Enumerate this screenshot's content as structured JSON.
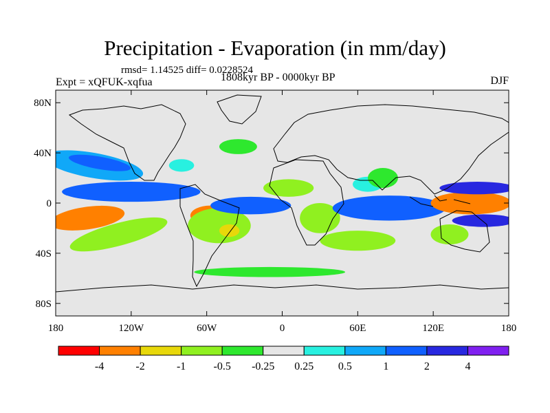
{
  "header": {
    "title": "Precipitation - Evaporation (in mm/day)",
    "stats": "rmsd= 1.14525 diff= 0.0228524",
    "experiment": "Expt = xQFUK-xqfua",
    "period": "1808kyr BP - 0000kyr BP",
    "season": "DJF"
  },
  "chart_data": {
    "type": "heatmap",
    "title": "Precipitation - Evaporation (in mm/day)",
    "xlabel": "",
    "ylabel": "",
    "xlim": [
      -180,
      180
    ],
    "ylim": [
      -90,
      90
    ],
    "x_ticks": [
      {
        "value": -180,
        "label": "180"
      },
      {
        "value": -120,
        "label": "120W"
      },
      {
        "value": -60,
        "label": "60W"
      },
      {
        "value": 0,
        "label": "0"
      },
      {
        "value": 60,
        "label": "60E"
      },
      {
        "value": 120,
        "label": "120E"
      },
      {
        "value": 180,
        "label": "180"
      }
    ],
    "y_ticks": [
      {
        "value": 80,
        "label": "80N"
      },
      {
        "value": 40,
        "label": "40N"
      },
      {
        "value": 0,
        "label": "0"
      },
      {
        "value": -40,
        "label": "40S"
      },
      {
        "value": -80,
        "label": "80S"
      }
    ],
    "background_color": "#e6e6e6",
    "colorbar": {
      "labels": [
        "-4",
        "-2",
        "-1",
        "-0.5",
        "-0.25",
        "0.25",
        "0.5",
        "1",
        "2",
        "4"
      ],
      "colors": [
        "#ff0000",
        "#ff8000",
        "#e8d80a",
        "#90f020",
        "#2ee82e",
        "#e6e6e6",
        "#28f0e0",
        "#10a8f8",
        "#1060ff",
        "#2828e0",
        "#8020f0"
      ]
    },
    "regions": [
      {
        "name": "central-pacific-south-negative",
        "lon": -160,
        "lat": -13,
        "rlon": 22,
        "rlat": 6,
        "value": -5,
        "rot": -6
      },
      {
        "name": "central-pacific-south-orange",
        "lon": -155,
        "lat": -12,
        "rlon": 30,
        "rlat": 9,
        "value": -3,
        "rot": -8
      },
      {
        "name": "north-pacific-storm-track",
        "lon": -150,
        "lat": 30,
        "rlon": 40,
        "rlat": 10,
        "value": 0.75,
        "rot": 10
      },
      {
        "name": "north-pacific-storm-track-core",
        "lon": -145,
        "lat": 32,
        "rlon": 25,
        "rlat": 5,
        "value": 1.5,
        "rot": 10
      },
      {
        "name": "east-pacific-itcz",
        "lon": -115,
        "lat": 8,
        "rlon": 45,
        "rlat": 5,
        "value": 3,
        "rot": 0
      },
      {
        "name": "east-pacific-itcz-outer",
        "lon": -120,
        "lat": 9,
        "rlon": 55,
        "rlat": 8,
        "value": 1.5,
        "rot": 0
      },
      {
        "name": "south-pacific-green",
        "lon": -130,
        "lat": -25,
        "rlon": 40,
        "rlat": 9,
        "value": -0.75,
        "rot": -15
      },
      {
        "name": "amazon-drying",
        "lon": -57,
        "lat": -10,
        "rlon": 16,
        "rlat": 8,
        "value": -3,
        "rot": 0
      },
      {
        "name": "amazon-drying-core",
        "lon": -58,
        "lat": -11,
        "rlon": 8,
        "rlat": 4,
        "value": -5,
        "rot": 0
      },
      {
        "name": "south-america-green",
        "lon": -50,
        "lat": -18,
        "rlon": 25,
        "rlat": 14,
        "value": -0.75,
        "rot": 0
      },
      {
        "name": "south-atlantic-orange",
        "lon": -42,
        "lat": -22,
        "rlon": 8,
        "rlat": 5,
        "value": -1.5,
        "rot": 0
      },
      {
        "name": "atlantic-itcz",
        "lon": -25,
        "lat": -2,
        "rlon": 25,
        "rlat": 4,
        "value": 5,
        "rot": 0
      },
      {
        "name": "atlantic-itcz-outer",
        "lon": -25,
        "lat": -2,
        "rlon": 32,
        "rlat": 7,
        "value": 1.5,
        "rot": 0
      },
      {
        "name": "sahel-orange",
        "lon": 5,
        "lat": 13,
        "rlon": 14,
        "rlat": 4,
        "value": -3,
        "rot": 0
      },
      {
        "name": "north-africa-yellow",
        "lon": 5,
        "lat": 12,
        "rlon": 20,
        "rlat": 7,
        "value": -0.75,
        "rot": 0
      },
      {
        "name": "southern-africa-orange",
        "lon": 25,
        "lat": -15,
        "rlon": 6,
        "rlat": 5,
        "value": -3,
        "rot": 0
      },
      {
        "name": "southern-africa-green",
        "lon": 30,
        "lat": -12,
        "rlon": 16,
        "rlat": 12,
        "value": -0.75,
        "rot": 0
      },
      {
        "name": "south-indian-green",
        "lon": 60,
        "lat": -30,
        "rlon": 30,
        "rlat": 8,
        "value": -0.75,
        "rot": 0
      },
      {
        "name": "indian-ocean-itcz",
        "lon": 95,
        "lat": -3,
        "rlon": 40,
        "rlat": 5,
        "value": 3,
        "rot": 0
      },
      {
        "name": "indian-ocean-itcz-outer",
        "lon": 85,
        "lat": -4,
        "rlon": 45,
        "rlat": 10,
        "value": 1.5,
        "rot": 0
      },
      {
        "name": "arabian-sea-cyan",
        "lon": 68,
        "lat": 15,
        "rlon": 12,
        "rlat": 6,
        "value": 0.35,
        "rot": 0
      },
      {
        "name": "india-green",
        "lon": 80,
        "lat": 20,
        "rlon": 12,
        "rlat": 8,
        "value": -0.4,
        "rot": 0
      },
      {
        "name": "maritime-continent-drying",
        "lon": 148,
        "lat": 0,
        "rlon": 25,
        "rlat": 5,
        "value": -5,
        "rot": 0
      },
      {
        "name": "maritime-continent-orange",
        "lon": 150,
        "lat": 0,
        "rlon": 32,
        "rlat": 9,
        "value": -3,
        "rot": 0
      },
      {
        "name": "west-pacific-north-blue",
        "lon": 155,
        "lat": 12,
        "rlon": 30,
        "rlat": 5,
        "value": 3,
        "rot": 0
      },
      {
        "name": "west-pacific-south-blue",
        "lon": 160,
        "lat": -14,
        "rlon": 25,
        "rlat": 5,
        "value": 3,
        "rot": 0
      },
      {
        "name": "north-atlantic-green",
        "lon": -35,
        "lat": 45,
        "rlon": 15,
        "rlat": 6,
        "value": -0.4,
        "rot": 0
      },
      {
        "name": "north-america-cyan",
        "lon": -80,
        "lat": 30,
        "rlon": 10,
        "rlat": 5,
        "value": 0.35,
        "rot": 0
      },
      {
        "name": "australia-green",
        "lon": 133,
        "lat": -25,
        "rlon": 15,
        "rlat": 8,
        "value": -0.75,
        "rot": 0
      },
      {
        "name": "southern-ocean-green",
        "lon": -10,
        "lat": -55,
        "rlon": 60,
        "rlat": 4,
        "value": -0.4,
        "rot": 0
      }
    ]
  }
}
